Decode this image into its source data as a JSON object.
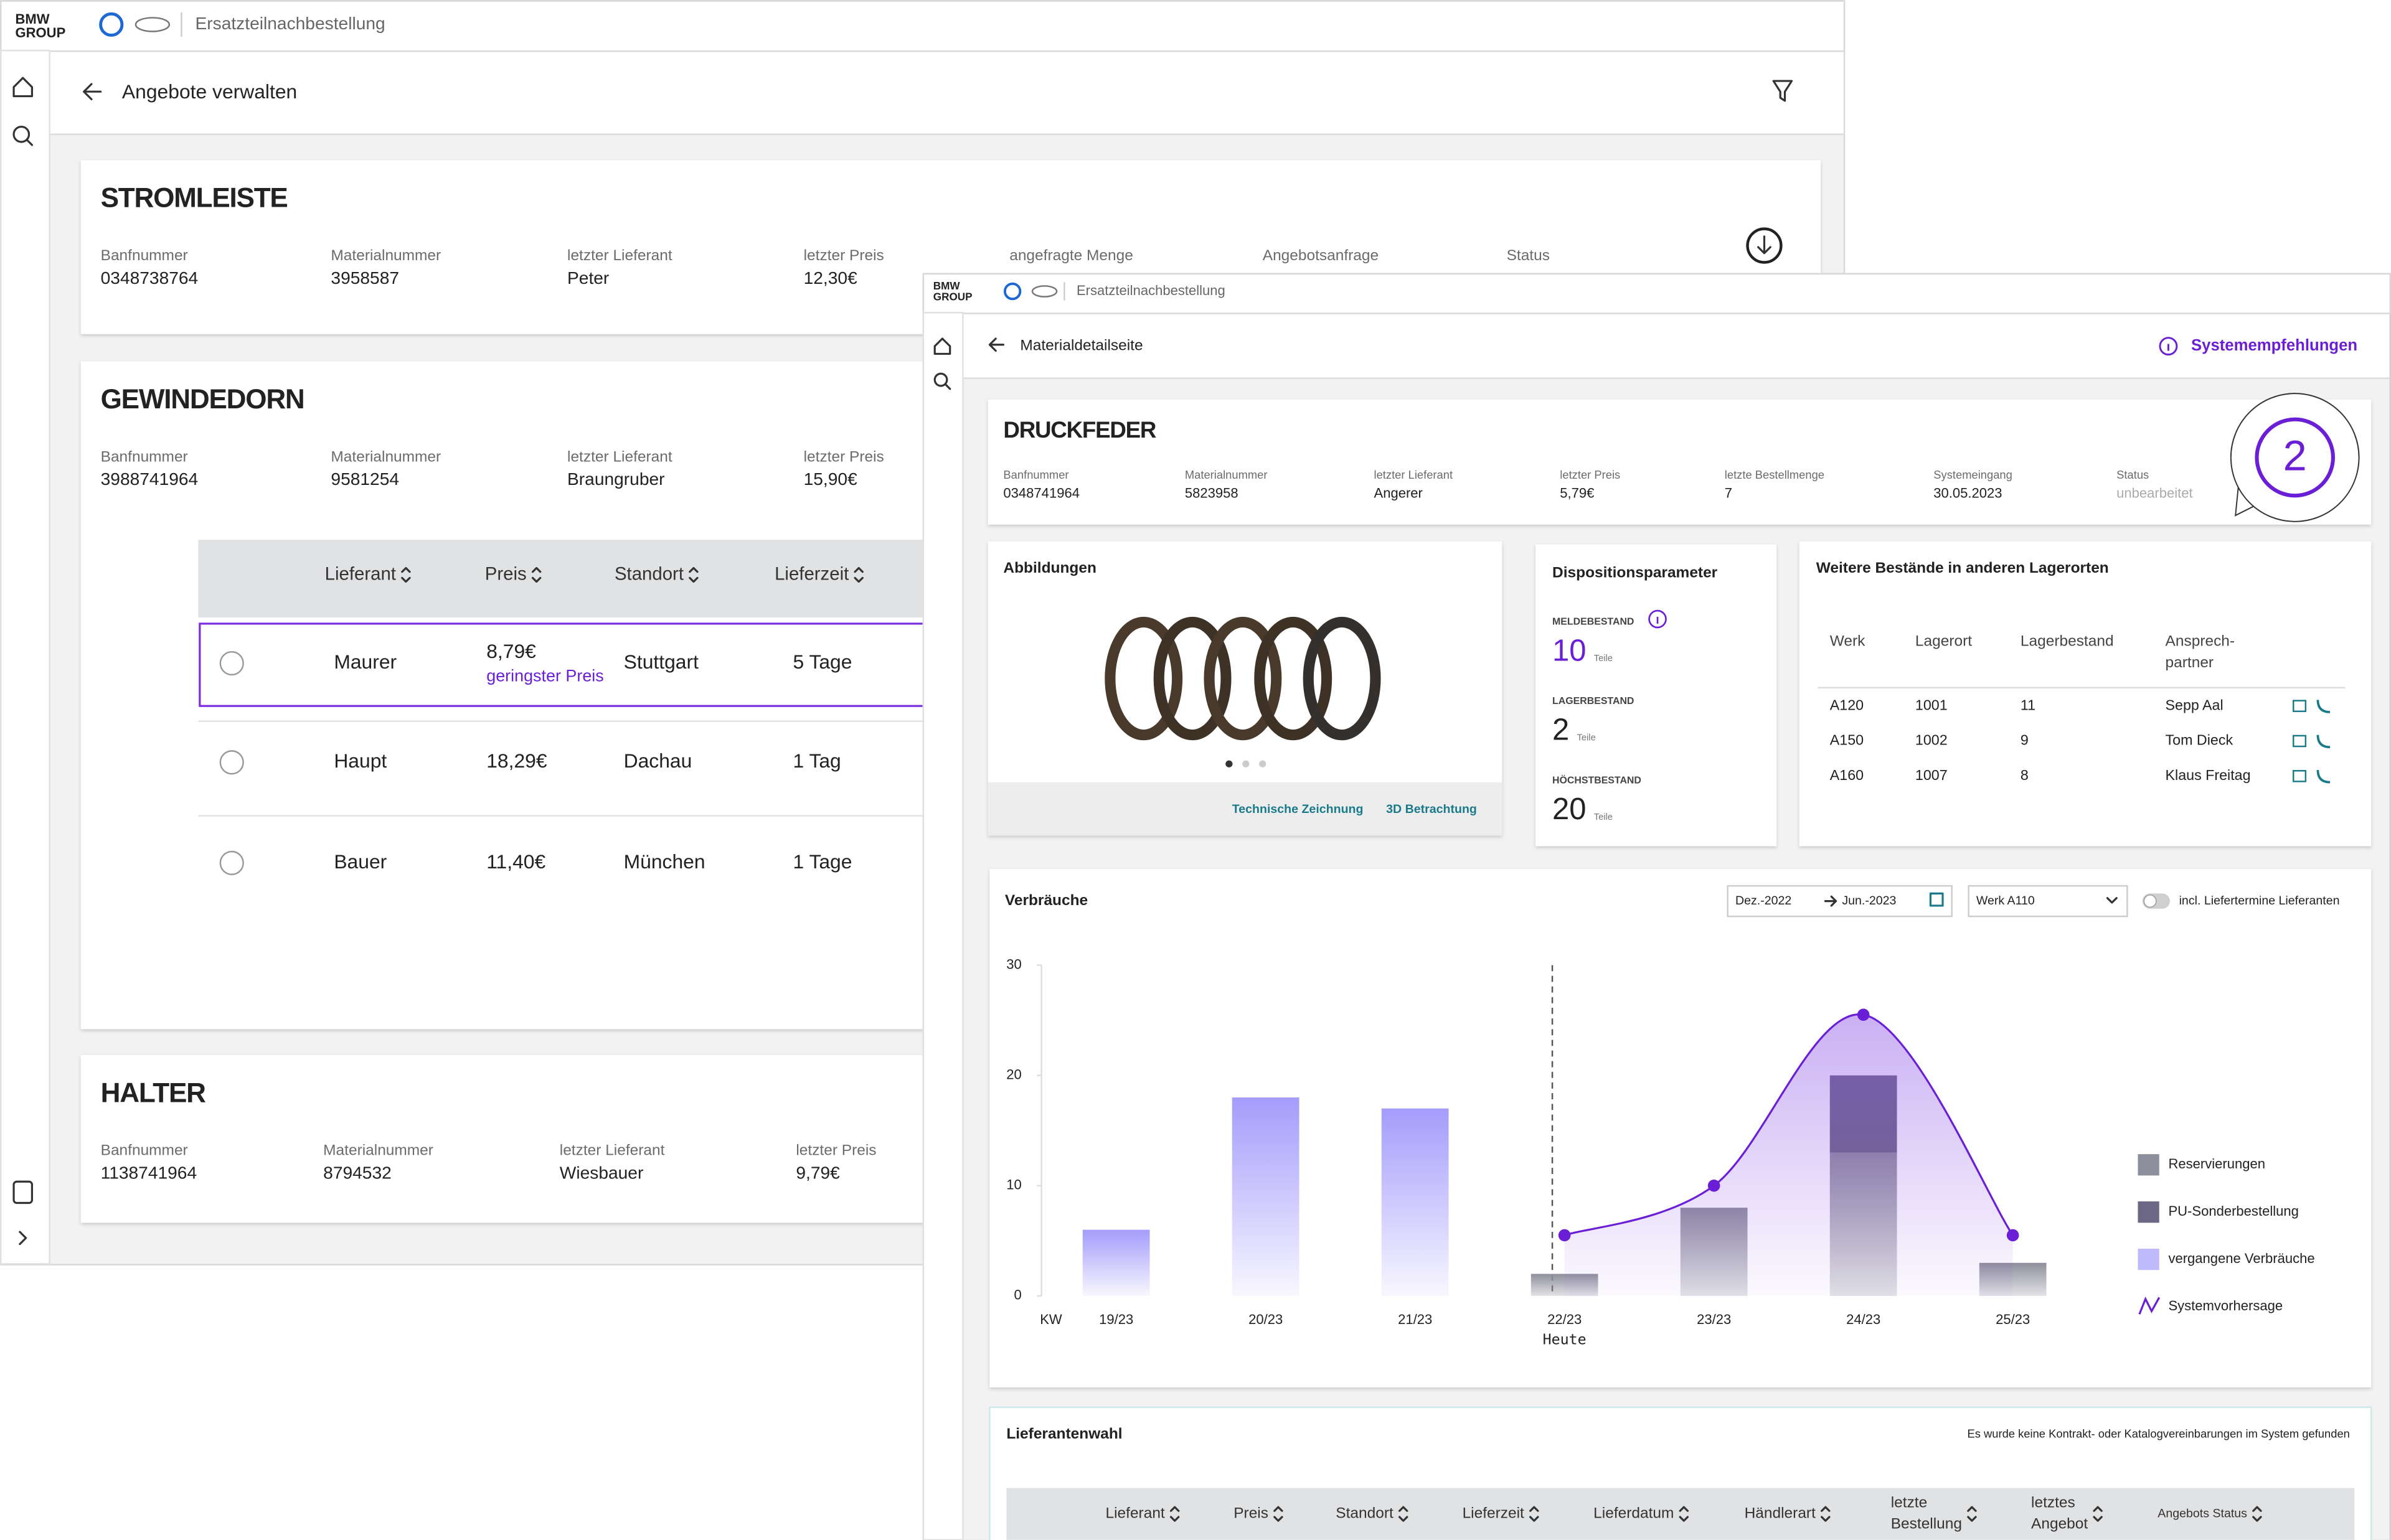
{
  "logo": [
    "BMW",
    "GROUP"
  ],
  "back_window": {
    "app_title": "Ersatzteilnachbestellung",
    "page_title": "Angebote verwalten",
    "cards": [
      {
        "title": "STROMLEISTE",
        "fields": [
          {
            "label": "Banfnummer",
            "value": "0348738764"
          },
          {
            "label": "Materialnummer",
            "value": "3958587"
          },
          {
            "label": "letzter Lieferant",
            "value": "Peter"
          },
          {
            "label": "letzter Preis",
            "value": "12,30€"
          }
        ],
        "extra_labels": [
          "angefragte Menge",
          "Angebotsanfrage",
          "Status"
        ]
      },
      {
        "title": "GEWINDEDORN",
        "fields": [
          {
            "label": "Banfnummer",
            "value": "3988741964"
          },
          {
            "label": "Materialnummer",
            "value": "9581254"
          },
          {
            "label": "letzter Lieferant",
            "value": "Braungruber"
          },
          {
            "label": "letzter Preis",
            "value": "15,90€"
          }
        ]
      },
      {
        "title": "HALTER",
        "fields": [
          {
            "label": "Banfnummer",
            "value": "1138741964"
          },
          {
            "label": "Materialnummer",
            "value": "8794532"
          },
          {
            "label": "letzter Lieferant",
            "value": "Wiesbauer"
          },
          {
            "label": "letzter Preis",
            "value": "9,79€"
          }
        ]
      }
    ],
    "table": {
      "headers": [
        "Lieferant",
        "Preis",
        "Standort",
        "Lieferzeit"
      ],
      "rows": [
        [
          "Maurer",
          "8,79€",
          "Stuttgart",
          "5 Tage"
        ],
        [
          "Haupt",
          "18,29€",
          "Dachau",
          "1 Tag"
        ],
        [
          "Bauer",
          "11,40€",
          "München",
          "1 Tage"
        ]
      ],
      "highlight_note": "geringster Preis"
    }
  },
  "front_window": {
    "app_title": "Ersatzteilnachbestellung",
    "page_title": "Materialdetailseite",
    "recommendations": "Systemempfehlungen",
    "badge": "2",
    "material": {
      "title": "DRUCKFEDER",
      "fields": [
        {
          "label": "Banfnummer",
          "value": "0348741964"
        },
        {
          "label": "Materialnummer",
          "value": "5823958"
        },
        {
          "label": "letzter Lieferant",
          "value": "Angerer"
        },
        {
          "label": "letzter Preis",
          "value": "5,79€"
        },
        {
          "label": "letzte Bestellmenge",
          "value": "7"
        },
        {
          "label": "Systemeingang",
          "value": "30.05.2023"
        },
        {
          "label": "Status",
          "value": "unbearbeitet"
        }
      ]
    },
    "images": {
      "title": "Abbildungen",
      "links": [
        "Technische Zeichnung",
        "3D Betrachtung"
      ]
    },
    "disposition": {
      "title": "Dispositionsparameter",
      "unit": "Teile",
      "items": [
        {
          "label": "MELDEBESTAND",
          "value": "10"
        },
        {
          "label": "LAGERBESTAND",
          "value": "2"
        },
        {
          "label": "HÖCHSTBESTAND",
          "value": "20"
        }
      ]
    },
    "stock": {
      "title": "Weitere Bestände in anderen Lagerorten",
      "headers": [
        [
          "Werk"
        ],
        [
          "Lagerort"
        ],
        [
          "Lagerbestand"
        ],
        [
          "Ansprech-",
          "partner"
        ]
      ],
      "rows": [
        [
          "A120",
          "1001",
          "11",
          "Sepp Aal"
        ],
        [
          "A150",
          "1002",
          "9",
          "Tom Dieck"
        ],
        [
          "A160",
          "1007",
          "8",
          "Klaus Freitag"
        ]
      ]
    },
    "consumption": {
      "title": "Verbräuche",
      "date_from": "Dez.-2022",
      "date_to": "Jun.-2023",
      "plant": "Werk A110",
      "toggle_label": "incl. Liefertermine Lieferanten",
      "chart_data": {
        "type": "bar",
        "x_label": "KW",
        "categories": [
          "19/23",
          "20/23",
          "21/23",
          "22/23",
          "23/23",
          "24/23",
          "25/23"
        ],
        "today_label": "Heute",
        "today_index": 3,
        "ylim": [
          0,
          30
        ],
        "yticks": [
          0,
          10,
          20,
          30
        ],
        "grid": false,
        "series": [
          {
            "name": "Reservierungen",
            "color": "#8e8f9c",
            "values": [
              null,
              null,
              null,
              2,
              8,
              13,
              3
            ]
          },
          {
            "name": "PU-Sonderbestellung",
            "color": "#6c6784",
            "values": [
              null,
              null,
              null,
              null,
              null,
              7,
              null
            ]
          },
          {
            "name": "vergangene Verbräuche",
            "color": "#a49cfb",
            "values": [
              6,
              18,
              17,
              null,
              null,
              null,
              null
            ]
          },
          {
            "name": "Systemvorhersage",
            "color": "#6a1fd6",
            "type": "line",
            "values": [
              null,
              null,
              null,
              5.5,
              10,
              25.5,
              5.5
            ]
          }
        ]
      }
    },
    "suppliers": {
      "title": "Lieferantenwahl",
      "note": "Es wurde keine Kontrakt- oder Katalogvereinbarungen im System gefunden",
      "headers": [
        [
          "Lieferant"
        ],
        [
          "Preis"
        ],
        [
          "Standort"
        ],
        [
          "Lieferzeit"
        ],
        [
          "Lieferdatum"
        ],
        [
          "Händlerart"
        ],
        [
          "letzte",
          "Bestellung"
        ],
        [
          "letztes",
          "Angebot"
        ],
        [
          "Angebots Status"
        ]
      ]
    }
  }
}
